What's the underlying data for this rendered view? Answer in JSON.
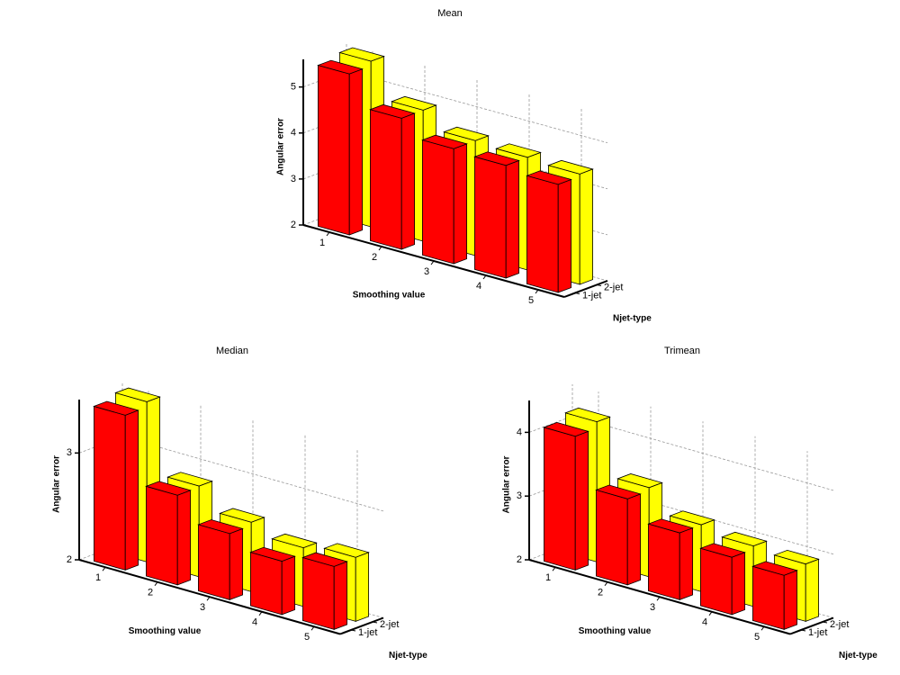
{
  "chart_data": [
    {
      "type": "bar3d",
      "title": "Mean",
      "xlabel": "Smoothing value",
      "ylabel": "Njet-type",
      "zlabel": "Angular error",
      "categories": [
        1,
        2,
        3,
        4,
        5
      ],
      "series": [
        {
          "name": "1-jet",
          "color": "#ff0000",
          "values": [
            5.5,
            4.85,
            4.5,
            4.45,
            4.35
          ]
        },
        {
          "name": "2-jet",
          "color": "#ffff00",
          "values": [
            5.6,
            4.85,
            4.5,
            4.45,
            4.4
          ]
        }
      ],
      "zlim": [
        2,
        5.6
      ],
      "zticks": [
        2,
        3,
        4,
        5
      ],
      "grid": true
    },
    {
      "type": "bar3d",
      "title": "Median",
      "xlabel": "Smoothing value",
      "ylabel": "Njet-type",
      "zlabel": "Angular error",
      "categories": [
        1,
        2,
        3,
        4,
        5
      ],
      "series": [
        {
          "name": "1-jet",
          "color": "#ff0000",
          "values": [
            3.45,
            2.84,
            2.62,
            2.5,
            2.59
          ]
        },
        {
          "name": "2-jet",
          "color": "#ffff00",
          "values": [
            3.5,
            2.85,
            2.65,
            2.55,
            2.6
          ]
        }
      ],
      "zlim": [
        2,
        3.5
      ],
      "zticks": [
        2,
        3
      ],
      "grid": true
    },
    {
      "type": "bar3d",
      "title": "Trimean",
      "xlabel": "Smoothing value",
      "ylabel": "Njet-type",
      "zlabel": "Angular error",
      "categories": [
        1,
        2,
        3,
        4,
        5
      ],
      "series": [
        {
          "name": "1-jet",
          "color": "#ff0000",
          "values": [
            4.1,
            3.35,
            3.05,
            2.9,
            2.85
          ]
        },
        {
          "name": "2-jet",
          "color": "#ffff00",
          "values": [
            4.2,
            3.4,
            3.05,
            2.95,
            2.9
          ]
        }
      ],
      "zlim": [
        2,
        4.5
      ],
      "zticks": [
        2,
        3,
        4
      ],
      "grid": true
    }
  ]
}
